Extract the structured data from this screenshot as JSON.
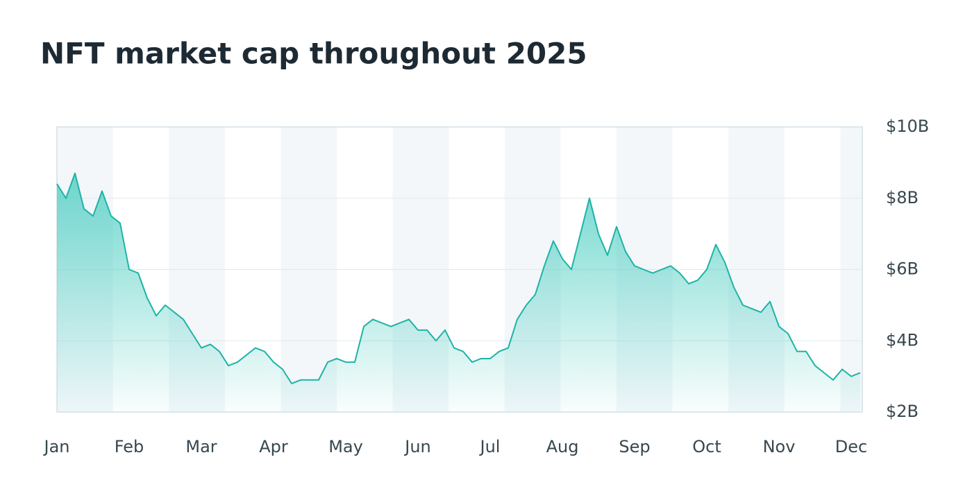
{
  "chart_data": {
    "type": "line",
    "title": "NFT market cap throughout 2025",
    "categories": [
      "Jan",
      null,
      null,
      null,
      null,
      null,
      null,
      null,
      "Feb",
      null,
      null,
      null,
      null,
      null,
      null,
      null,
      "Mar",
      null,
      null,
      null,
      null,
      null,
      null,
      null,
      "Apr",
      null,
      null,
      null,
      null,
      null,
      null,
      null,
      "May",
      null,
      null,
      null,
      null,
      null,
      null,
      null,
      "Jun",
      null,
      null,
      null,
      null,
      null,
      null,
      null,
      "Jul",
      null,
      null,
      null,
      null,
      null,
      null,
      null,
      "Aug",
      null,
      null,
      null,
      null,
      null,
      null,
      null,
      "Sep",
      null,
      null,
      null,
      null,
      null,
      null,
      null,
      "Oct",
      null,
      null,
      null,
      null,
      null,
      null,
      null,
      "Nov",
      null,
      null,
      null,
      null,
      null,
      null,
      null,
      "Dec",
      null
    ],
    "values": [
      8.4,
      8.0,
      8.7,
      7.7,
      7.5,
      8.2,
      7.5,
      7.3,
      6.0,
      5.9,
      5.2,
      4.7,
      5.0,
      4.8,
      4.6,
      4.2,
      3.8,
      3.9,
      3.7,
      3.3,
      3.4,
      3.6,
      3.8,
      3.7,
      3.4,
      3.2,
      2.8,
      2.9,
      2.9,
      2.9,
      3.4,
      3.5,
      3.4,
      3.4,
      4.4,
      4.6,
      4.5,
      4.4,
      4.5,
      4.6,
      4.3,
      4.3,
      4.0,
      4.3,
      3.8,
      3.7,
      3.4,
      3.5,
      3.5,
      3.7,
      3.8,
      4.6,
      5.0,
      5.3,
      6.1,
      6.8,
      6.3,
      6.0,
      7.0,
      8.0,
      7.0,
      6.4,
      7.2,
      6.5,
      6.1,
      6.0,
      5.9,
      6.0,
      6.1,
      5.9,
      5.6,
      5.7,
      6.0,
      6.7,
      6.2,
      5.5,
      5.0,
      4.9,
      4.8,
      5.1,
      4.4,
      4.2,
      3.7,
      3.7,
      3.3,
      3.1,
      2.9,
      3.2,
      3.0,
      3.1
    ],
    "color": "#1db3a6",
    "ylim": [
      2,
      10
    ],
    "yticks": [
      {
        "value": 2,
        "label": "$2B"
      },
      {
        "value": 4,
        "label": "$4B"
      },
      {
        "value": 6,
        "label": "$6B"
      },
      {
        "value": 8,
        "label": "$8B"
      },
      {
        "value": 10,
        "label": "$10B"
      }
    ],
    "grid": true
  }
}
